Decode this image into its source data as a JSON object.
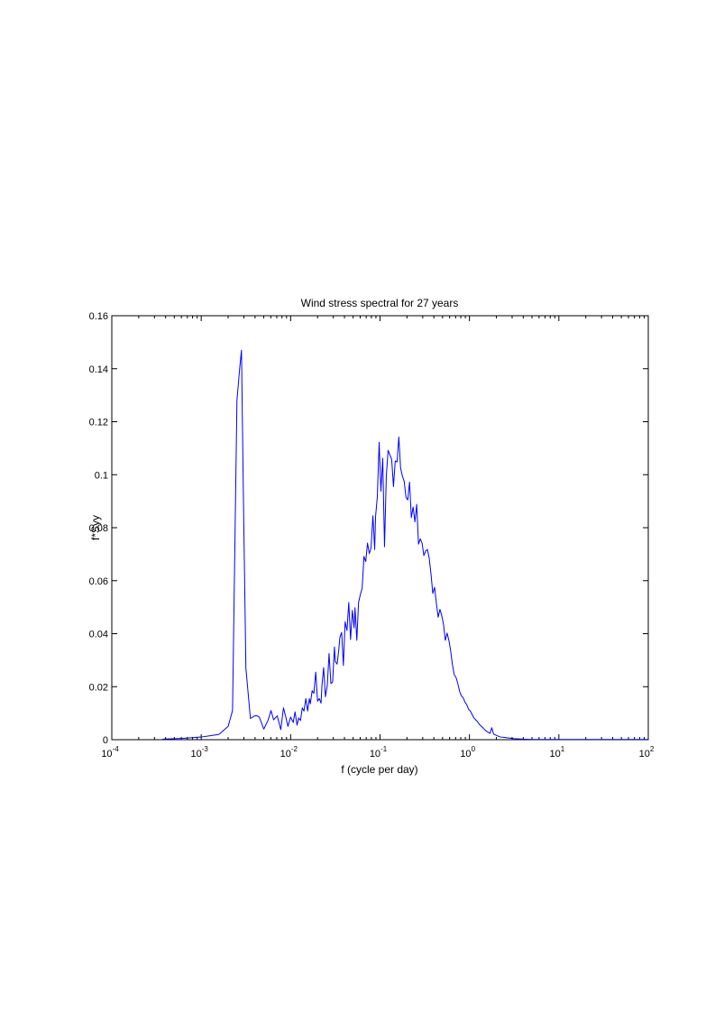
{
  "figure": {
    "background": "#ffffff"
  },
  "chart_data": {
    "type": "line",
    "title": "Wind stress spectral for 27 years",
    "xlabel": "f (cycle per day)",
    "ylabel": "f*Syy",
    "xscale": "log",
    "xlim": [
      0.0001,
      100
    ],
    "ylim": [
      0,
      0.16
    ],
    "grid": false,
    "x_ticks": [
      {
        "value": 0.0001,
        "base": "10",
        "exp": "-4"
      },
      {
        "value": 0.001,
        "base": "10",
        "exp": "-3"
      },
      {
        "value": 0.01,
        "base": "10",
        "exp": "-2"
      },
      {
        "value": 0.1,
        "base": "10",
        "exp": "-1"
      },
      {
        "value": 1,
        "base": "10",
        "exp": "0"
      },
      {
        "value": 10,
        "base": "10",
        "exp": "1"
      },
      {
        "value": 100,
        "base": "10",
        "exp": "2"
      }
    ],
    "y_ticks": [
      {
        "value": 0,
        "label": "0"
      },
      {
        "value": 0.02,
        "label": "0.02"
      },
      {
        "value": 0.04,
        "label": "0.04"
      },
      {
        "value": 0.06,
        "label": "0.06"
      },
      {
        "value": 0.08,
        "label": "0.08"
      },
      {
        "value": 0.1,
        "label": "0.1"
      },
      {
        "value": 0.12,
        "label": "0.12"
      },
      {
        "value": 0.14,
        "label": "0.14"
      },
      {
        "value": 0.16,
        "label": "0.16"
      }
    ],
    "series": [
      {
        "color": "#0000ff",
        "x": [
          0.00037,
          0.00063,
          0.001,
          0.00126,
          0.00158,
          0.002,
          0.00224,
          0.00251,
          0.00269,
          0.00282,
          0.00295,
          0.00316,
          0.00355,
          0.00398,
          0.0042,
          0.00447,
          0.00501,
          0.00562,
          0.00603,
          0.00646,
          0.00708,
          0.00776,
          0.00832,
          0.00891,
          0.00933,
          0.01,
          0.0107,
          0.0112,
          0.0118,
          0.0123,
          0.0129,
          0.0135,
          0.0141,
          0.0148,
          0.0155,
          0.0162,
          0.0166,
          0.0174,
          0.0182,
          0.0191,
          0.02,
          0.0209,
          0.0219,
          0.0224,
          0.0234,
          0.0245,
          0.0257,
          0.0269,
          0.0282,
          0.0295,
          0.0309,
          0.0316,
          0.0331,
          0.0347,
          0.0355,
          0.0372,
          0.0389,
          0.0407,
          0.0427,
          0.0447,
          0.0468,
          0.049,
          0.0513,
          0.0525,
          0.055,
          0.0575,
          0.0603,
          0.0631,
          0.0661,
          0.0692,
          0.0724,
          0.0759,
          0.0794,
          0.0832,
          0.0871,
          0.0891,
          0.0933,
          0.0977,
          0.1023,
          0.1072,
          0.1122,
          0.1175,
          0.123,
          0.1288,
          0.1349,
          0.1413,
          0.1479,
          0.1549,
          0.1622,
          0.1698,
          0.1778,
          0.1862,
          0.195,
          0.2042,
          0.2138,
          0.2239,
          0.2344,
          0.2455,
          0.257,
          0.2692,
          0.2818,
          0.2951,
          0.309,
          0.3236,
          0.3388,
          0.3548,
          0.3715,
          0.389,
          0.4074,
          0.4266,
          0.4467,
          0.4677,
          0.4898,
          0.5129,
          0.537,
          0.5623,
          0.5888,
          0.6166,
          0.6457,
          0.6761,
          0.7079,
          0.7413,
          0.7762,
          0.8128,
          0.8511,
          0.8913,
          0.9333,
          0.9772,
          1.0233,
          1.0715,
          1.122,
          1.1749,
          1.2303,
          1.2882,
          1.349,
          1.4125,
          1.4791,
          1.5488,
          1.6218,
          1.6982,
          1.7783,
          1.8621,
          1.9498,
          2.0417,
          2.138,
          2.2387,
          2.5119,
          2.8184,
          3.1623,
          3.5481,
          3.9811,
          5.0119,
          6.3096,
          10,
          15.85,
          25.12,
          39.81,
          63.1,
          100
        ],
        "y": [
          0.0002,
          0.0005,
          0.001,
          0.0015,
          0.002,
          0.005,
          0.011,
          0.128,
          0.14,
          0.147,
          0.0965,
          0.027,
          0.008,
          0.009,
          0.009,
          0.0085,
          0.004,
          0.0075,
          0.011,
          0.0075,
          0.009,
          0.0038,
          0.012,
          0.008,
          0.005,
          0.0085,
          0.0065,
          0.0105,
          0.0055,
          0.0082,
          0.0072,
          0.012,
          0.0108,
          0.0155,
          0.0108,
          0.0155,
          0.0135,
          0.0185,
          0.0175,
          0.0255,
          0.0145,
          0.0155,
          0.0138,
          0.0205,
          0.0272,
          0.0162,
          0.0205,
          0.0325,
          0.0212,
          0.0218,
          0.035,
          0.0295,
          0.0285,
          0.0345,
          0.0385,
          0.0405,
          0.028,
          0.0445,
          0.0412,
          0.0518,
          0.0378,
          0.0488,
          0.0422,
          0.0498,
          0.0375,
          0.0518,
          0.0548,
          0.0572,
          0.0692,
          0.0672,
          0.0742,
          0.0702,
          0.0725,
          0.0845,
          0.0718,
          0.0842,
          0.0918,
          0.1122,
          0.0938,
          0.1062,
          0.0728,
          0.0995,
          0.1092,
          0.1075,
          0.1058,
          0.0955,
          0.1052,
          0.1048,
          0.1142,
          0.1025,
          0.0995,
          0.0975,
          0.0915,
          0.0905,
          0.0972,
          0.0838,
          0.0878,
          0.0822,
          0.0888,
          0.0738,
          0.0758,
          0.0742,
          0.0695,
          0.0712,
          0.0718,
          0.0685,
          0.0625,
          0.0552,
          0.0575,
          0.0515,
          0.0462,
          0.0492,
          0.0468,
          0.0435,
          0.0375,
          0.0402,
          0.0375,
          0.0335,
          0.0282,
          0.0245,
          0.0235,
          0.0212,
          0.0182,
          0.0165,
          0.0158,
          0.0142,
          0.0132,
          0.0115,
          0.0108,
          0.0095,
          0.0082,
          0.0075,
          0.0068,
          0.0058,
          0.0052,
          0.0045,
          0.0038,
          0.0032,
          0.0028,
          0.0024,
          0.0045,
          0.0021,
          0.0018,
          0.0015,
          0.0012,
          0.001,
          0.0008,
          0.0006,
          0.0004,
          0.0003,
          0.0002,
          0.0001,
          0.0001,
          0.0001,
          0.0001,
          0.0001,
          0.0001,
          0.0001,
          0.0001
        ]
      }
    ]
  }
}
